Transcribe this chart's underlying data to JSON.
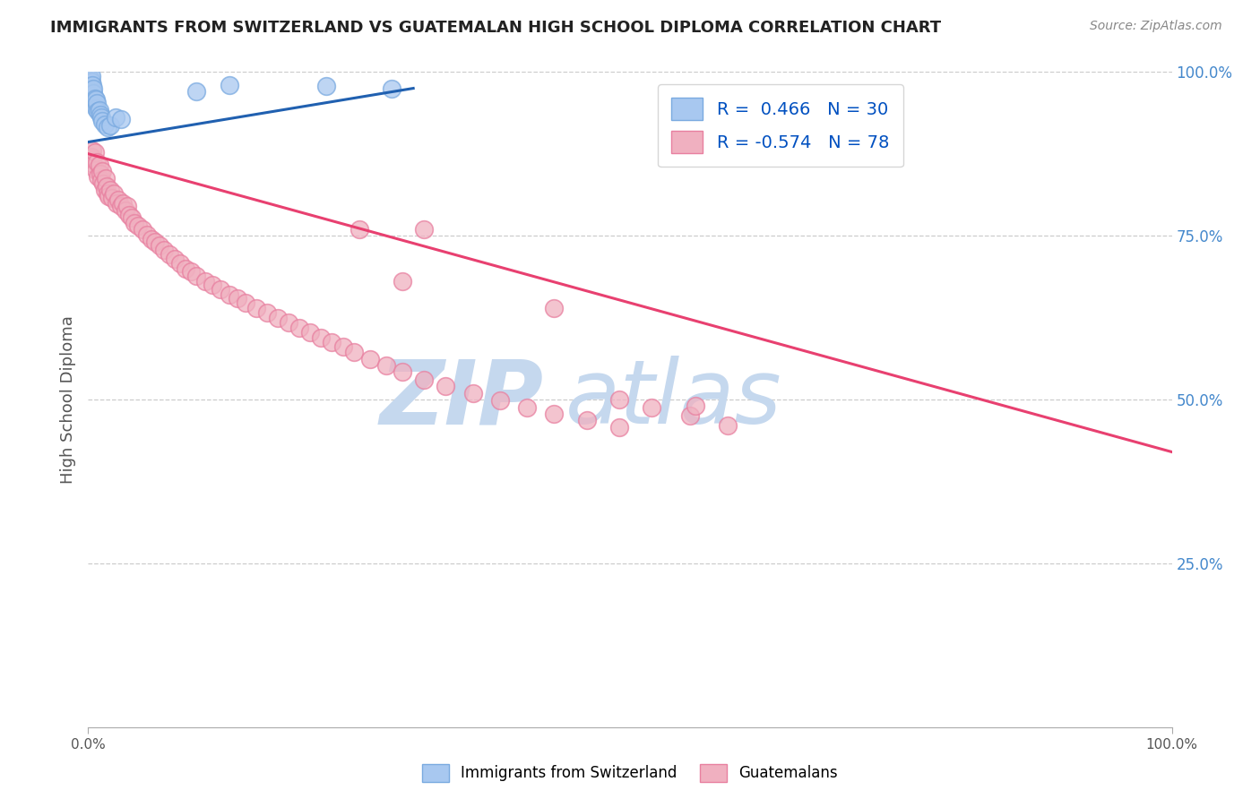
{
  "title": "IMMIGRANTS FROM SWITZERLAND VS GUATEMALAN HIGH SCHOOL DIPLOMA CORRELATION CHART",
  "source": "Source: ZipAtlas.com",
  "ylabel": "High School Diploma",
  "xlabel": "",
  "xlim": [
    0.0,
    1.0
  ],
  "ylim": [
    0.0,
    1.0
  ],
  "xtick_labels": [
    "0.0%",
    "",
    "",
    "",
    "",
    "",
    "",
    "",
    "",
    "",
    "100.0%"
  ],
  "xtick_positions": [
    0.0,
    0.1,
    0.2,
    0.3,
    0.4,
    0.5,
    0.6,
    0.7,
    0.8,
    0.9,
    1.0
  ],
  "ytick_labels_right": [
    "100.0%",
    "75.0%",
    "50.0%",
    "25.0%"
  ],
  "ytick_positions_right": [
    1.0,
    0.75,
    0.5,
    0.25
  ],
  "grid_color": "#cccccc",
  "grid_style": "--",
  "background_color": "#ffffff",
  "watermark_zip": "ZIP",
  "watermark_atlas": "atlas",
  "watermark_color": "#c5d8ee",
  "blue_R": 0.466,
  "blue_N": 30,
  "pink_R": -0.574,
  "pink_N": 78,
  "blue_color": "#a8c8f0",
  "blue_edge_color": "#7aaae0",
  "pink_color": "#f0b0c0",
  "pink_edge_color": "#e880a0",
  "blue_line_color": "#2060b0",
  "pink_line_color": "#e84070",
  "legend_R_color": "#0050c0",
  "blue_scatter_x": [
    0.001,
    0.002,
    0.002,
    0.003,
    0.003,
    0.003,
    0.004,
    0.004,
    0.005,
    0.005,
    0.005,
    0.006,
    0.006,
    0.007,
    0.007,
    0.008,
    0.009,
    0.01,
    0.011,
    0.012,
    0.013,
    0.015,
    0.018,
    0.02,
    0.025,
    0.03,
    0.1,
    0.13,
    0.22,
    0.28
  ],
  "blue_scatter_y": [
    0.97,
    0.96,
    0.99,
    0.975,
    0.985,
    0.993,
    0.97,
    0.98,
    0.955,
    0.968,
    0.975,
    0.95,
    0.96,
    0.945,
    0.958,
    0.952,
    0.94,
    0.942,
    0.935,
    0.93,
    0.925,
    0.92,
    0.915,
    0.918,
    0.93,
    0.928,
    0.97,
    0.98,
    0.978,
    0.975
  ],
  "pink_scatter_x": [
    0.003,
    0.004,
    0.005,
    0.006,
    0.007,
    0.008,
    0.009,
    0.01,
    0.011,
    0.012,
    0.013,
    0.014,
    0.015,
    0.016,
    0.017,
    0.018,
    0.019,
    0.02,
    0.022,
    0.024,
    0.026,
    0.028,
    0.03,
    0.032,
    0.034,
    0.036,
    0.038,
    0.04,
    0.043,
    0.046,
    0.05,
    0.054,
    0.058,
    0.062,
    0.066,
    0.07,
    0.075,
    0.08,
    0.085,
    0.09,
    0.095,
    0.1,
    0.108,
    0.115,
    0.122,
    0.13,
    0.138,
    0.145,
    0.155,
    0.165,
    0.175,
    0.185,
    0.195,
    0.205,
    0.215,
    0.225,
    0.235,
    0.245,
    0.26,
    0.275,
    0.29,
    0.31,
    0.33,
    0.355,
    0.38,
    0.405,
    0.43,
    0.46,
    0.49,
    0.52,
    0.555,
    0.59,
    0.49,
    0.56,
    0.43,
    0.31,
    0.25,
    0.29
  ],
  "pink_scatter_y": [
    0.87,
    0.88,
    0.86,
    0.878,
    0.85,
    0.862,
    0.84,
    0.858,
    0.845,
    0.835,
    0.848,
    0.83,
    0.82,
    0.838,
    0.825,
    0.815,
    0.81,
    0.82,
    0.808,
    0.815,
    0.8,
    0.805,
    0.795,
    0.8,
    0.788,
    0.795,
    0.782,
    0.778,
    0.77,
    0.765,
    0.76,
    0.752,
    0.745,
    0.74,
    0.735,
    0.728,
    0.722,
    0.715,
    0.708,
    0.7,
    0.695,
    0.688,
    0.68,
    0.675,
    0.668,
    0.66,
    0.655,
    0.648,
    0.64,
    0.632,
    0.625,
    0.618,
    0.61,
    0.602,
    0.595,
    0.588,
    0.58,
    0.572,
    0.562,
    0.552,
    0.542,
    0.53,
    0.52,
    0.51,
    0.498,
    0.488,
    0.478,
    0.468,
    0.458,
    0.488,
    0.475,
    0.46,
    0.5,
    0.49,
    0.64,
    0.76,
    0.76,
    0.68
  ],
  "blue_trendline_x": [
    0.0,
    0.3
  ],
  "blue_trendline_y": [
    0.893,
    0.975
  ],
  "pink_trendline_x": [
    0.0,
    1.0
  ],
  "pink_trendline_y": [
    0.875,
    0.42
  ]
}
